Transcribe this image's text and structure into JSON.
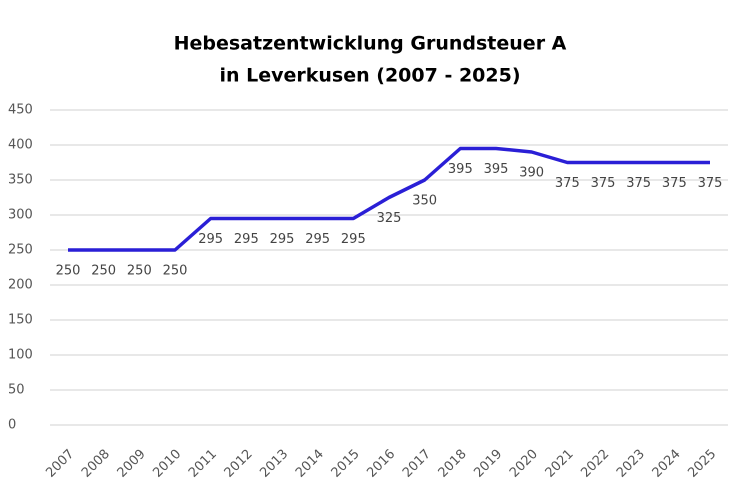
{
  "chart_data": {
    "type": "line",
    "title": [
      "Hebesatzentwicklung Grundsteuer A",
      "in Leverkusen (2007 - 2025)"
    ],
    "categories": [
      "2007",
      "2008",
      "2009",
      "2010",
      "2011",
      "2012",
      "2013",
      "2014",
      "2015",
      "2016",
      "2017",
      "2018",
      "2019",
      "2020",
      "2021",
      "2022",
      "2023",
      "2024",
      "2025"
    ],
    "series": [
      {
        "color": "#2a1fd6",
        "values": [
          250,
          250,
          250,
          250,
          295,
          295,
          295,
          295,
          295,
          325,
          350,
          395,
          395,
          390,
          375,
          375,
          375,
          375,
          375
        ]
      }
    ],
    "ylim": [
      0,
      450
    ],
    "yticks": [
      0,
      50,
      100,
      150,
      200,
      250,
      300,
      350,
      400,
      450
    ],
    "grid": true
  }
}
